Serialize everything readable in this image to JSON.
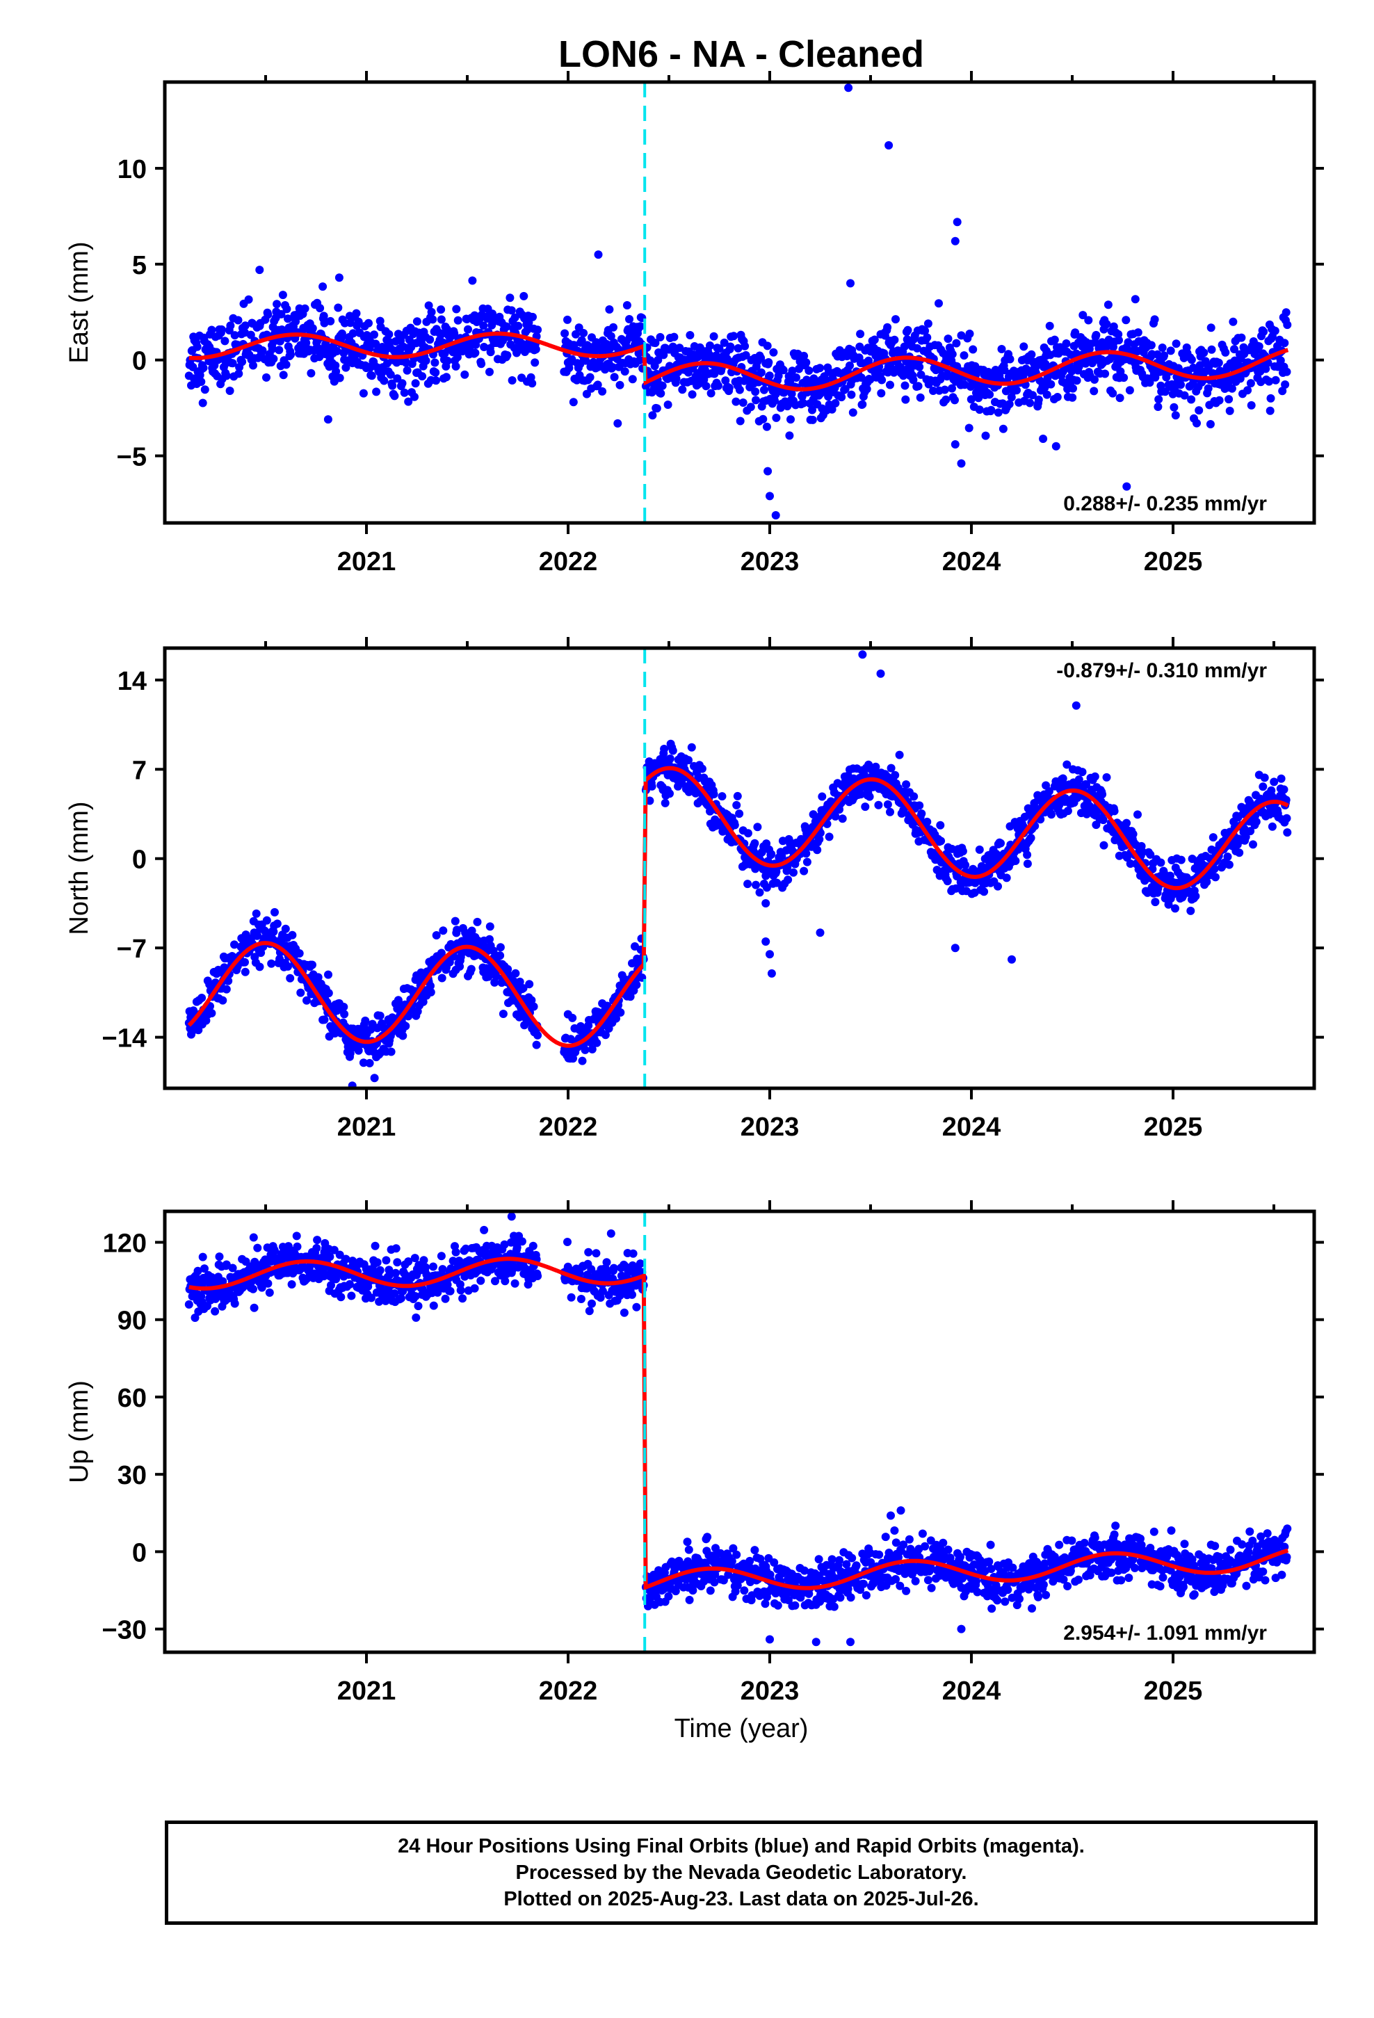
{
  "title": "LON6  - NA - Cleaned",
  "footer": {
    "line1": "24 Hour Positions Using Final Orbits (blue) and Rapid Orbits (magenta).",
    "line2": "Processed by the Nevada Geodetic Laboratory.",
    "line3": "Plotted on 2025-Aug-23. Last data on 2025-Jul-26."
  },
  "colors": {
    "points": "#0000ff",
    "fit": "#ff0000",
    "offset": "#00e5ee",
    "axis": "#000000"
  },
  "chart_data": [
    {
      "type": "scatter",
      "name": "east",
      "ylabel": "East (mm)",
      "xlabel": "",
      "xlim": [
        2020.0,
        2025.7
      ],
      "ylim": [
        -8.5,
        14.5
      ],
      "yticks": [
        10,
        5,
        0,
        -5
      ],
      "ytick_labels": [
        "10",
        "5",
        "0",
        "−5"
      ],
      "xticks": [
        2021,
        2022,
        2023,
        2024,
        2025
      ],
      "xtick_labels": [
        "2021",
        "2022",
        "2023",
        "2024",
        "2025"
      ],
      "offset_epoch": 2022.38,
      "trend_label": "0.288+/- 0.235 mm/yr",
      "trend_position": "bottom-right",
      "data_start": 2020.12,
      "data_end": 2025.57,
      "gaps": [
        [
          2021.85,
          2021.98
        ]
      ],
      "fit_segments": [
        {
          "t0": 2020.12,
          "t1": 2022.375,
          "base": 0.7,
          "rate": 0.05,
          "amp": 0.6,
          "phase": 2020.4
        },
        {
          "t0": 2022.385,
          "t1": 2025.57,
          "base": -1.0,
          "rate": 0.288,
          "amp": 0.75,
          "phase": 2022.42
        }
      ],
      "noise": 0.9,
      "outliers": [
        [
          2023.39,
          14.2
        ],
        [
          2023.59,
          11.2
        ],
        [
          2023.93,
          7.2
        ],
        [
          2023.92,
          6.2
        ],
        [
          2022.15,
          5.5
        ],
        [
          2023.4,
          4.0
        ],
        [
          2022.99,
          -5.8
        ],
        [
          2023.0,
          -7.1
        ],
        [
          2023.03,
          -8.1
        ],
        [
          2023.92,
          -4.4
        ],
        [
          2023.95,
          -5.4
        ],
        [
          2024.42,
          -4.5
        ],
        [
          2024.77,
          -6.6
        ],
        [
          2020.81,
          -3.1
        ],
        [
          2020.47,
          4.7
        ]
      ]
    },
    {
      "type": "scatter",
      "name": "north",
      "ylabel": "North (mm)",
      "xlabel": "",
      "xlim": [
        2020.0,
        2025.7
      ],
      "ylim": [
        -18,
        16.5
      ],
      "yticks": [
        14,
        7,
        0,
        -7,
        -14
      ],
      "ytick_labels": [
        "14",
        "7",
        "0",
        "−7",
        "−14"
      ],
      "xticks": [
        2021,
        2022,
        2023,
        2024,
        2025
      ],
      "xtick_labels": [
        "2021",
        "2022",
        "2023",
        "2024",
        "2025"
      ],
      "offset_epoch": 2022.38,
      "trend_label": "-0.879+/- 0.310 mm/yr",
      "trend_position": "top-right",
      "data_start": 2020.12,
      "data_end": 2025.57,
      "gaps": [
        [
          2021.85,
          2021.98
        ]
      ],
      "fit_segments": [
        {
          "t0": 2020.12,
          "t1": 2022.375,
          "base": -10.3,
          "rate": -0.3,
          "amp": 3.8,
          "phase": 2020.25
        },
        {
          "t0": 2022.385,
          "t1": 2025.57,
          "base": 3.6,
          "rate": -0.879,
          "amp": 3.6,
          "phase": 2022.26
        }
      ],
      "noise": 0.9,
      "outliers": [
        [
          2023.46,
          16.0
        ],
        [
          2023.55,
          14.5
        ],
        [
          2024.52,
          12.0
        ],
        [
          2023.0,
          -7.5
        ],
        [
          2023.01,
          -9.0
        ],
        [
          2022.98,
          -6.5
        ],
        [
          2023.25,
          -5.8
        ],
        [
          2023.92,
          -7.0
        ],
        [
          2024.2,
          -7.9
        ],
        [
          2020.93,
          -17.8
        ],
        [
          2021.04,
          -17.2
        ],
        [
          2022.98,
          -3.5
        ]
      ]
    },
    {
      "type": "scatter",
      "name": "up",
      "ylabel": "Up (mm)",
      "xlabel": "Time (year)",
      "xlim": [
        2020.0,
        2025.7
      ],
      "ylim": [
        -39,
        132
      ],
      "yticks": [
        120,
        90,
        60,
        30,
        0,
        -30
      ],
      "ytick_labels": [
        "120",
        "90",
        "60",
        "30",
        "0",
        "−30"
      ],
      "xticks": [
        2021,
        2022,
        2023,
        2024,
        2025
      ],
      "xtick_labels": [
        "2021",
        "2022",
        "2023",
        "2024",
        "2025"
      ],
      "offset_epoch": 2022.38,
      "trend_label": "2.954+/- 1.091 mm/yr",
      "trend_position": "bottom-right",
      "data_start": 2020.12,
      "data_end": 2025.57,
      "gaps": [
        [
          2021.85,
          2021.98
        ]
      ],
      "fit_segments": [
        {
          "t0": 2020.12,
          "t1": 2022.375,
          "base": 107.0,
          "rate": 1.0,
          "amp": 5.0,
          "phase": 2020.45
        },
        {
          "t0": 2022.385,
          "t1": 2025.57,
          "base": -12.0,
          "rate": 2.954,
          "amp": 4.5,
          "phase": 2023.45
        }
      ],
      "noise": 4.5,
      "outliers": [
        [
          2021.72,
          130.0
        ],
        [
          2023.0,
          -34.0
        ],
        [
          2023.23,
          -35.0
        ],
        [
          2023.4,
          -35.0
        ],
        [
          2023.65,
          16.0
        ],
        [
          2023.95,
          -30.0
        ],
        [
          2023.6,
          14.0
        ],
        [
          2024.3,
          -22.0
        ]
      ]
    }
  ]
}
